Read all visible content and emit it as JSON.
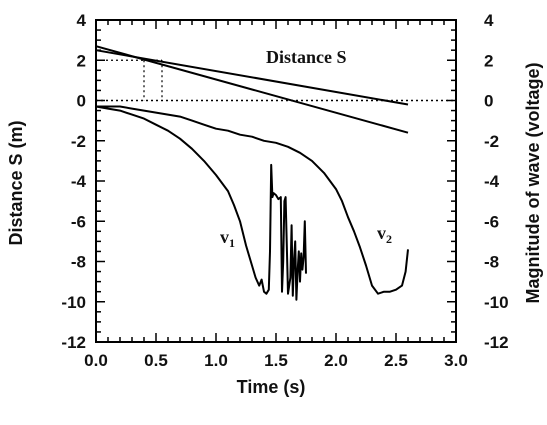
{
  "chart_data": {
    "type": "line",
    "xlabel": "Time (s)",
    "ylabel_left": "Distance S (m)",
    "ylabel_right": "Magnitude of wave (voltage)",
    "xlim": [
      0,
      3
    ],
    "ylim_left": [
      -12,
      4
    ],
    "ylim_right": [
      -12,
      4
    ],
    "x_ticks": [
      "0.0",
      "0.5",
      "1.0",
      "1.5",
      "2.0",
      "2.5",
      "3.0"
    ],
    "y_ticks": [
      "4",
      "2",
      "0",
      "-2",
      "-4",
      "-6",
      "-8",
      "-10",
      "-12"
    ],
    "grid": false,
    "annotations": {
      "distance": "Distance S",
      "v1_main": "v",
      "v1_sub": "1",
      "v2_main": "v",
      "v2_sub": "2"
    },
    "series": [
      {
        "name": "Distance S",
        "axis": "left",
        "x": [
          0.0,
          2.6
        ],
        "y": [
          2.5,
          -0.2
        ]
      },
      {
        "name": "Distance S",
        "axis": "left",
        "x": [
          0.0,
          2.6
        ],
        "y": [
          2.7,
          -1.6
        ]
      },
      {
        "name": "v1",
        "axis": "right",
        "x": [
          0.0,
          0.1,
          0.2,
          0.3,
          0.4,
          0.5,
          0.6,
          0.7,
          0.8,
          0.9,
          1.0,
          1.1,
          1.15,
          1.2,
          1.25,
          1.3,
          1.33,
          1.36,
          1.38,
          1.4,
          1.42,
          1.44,
          1.45,
          1.46,
          1.47,
          1.48,
          1.5,
          1.52,
          1.54,
          1.55,
          1.56,
          1.57,
          1.58,
          1.6,
          1.62,
          1.63,
          1.64,
          1.65,
          1.66,
          1.67,
          1.68,
          1.69,
          1.7,
          1.71,
          1.72,
          1.73,
          1.74,
          1.75
        ],
        "y": [
          -0.3,
          -0.4,
          -0.5,
          -0.7,
          -0.9,
          -1.2,
          -1.5,
          -1.9,
          -2.4,
          -3.0,
          -3.7,
          -4.5,
          -5.2,
          -6.0,
          -7.2,
          -8.2,
          -8.8,
          -9.2,
          -8.9,
          -9.5,
          -9.6,
          -9.4,
          -7.5,
          -3.2,
          -4.8,
          -4.6,
          -4.7,
          -4.9,
          -4.8,
          -9.5,
          -8.0,
          -5.0,
          -4.8,
          -9.6,
          -8.8,
          -6.2,
          -9.7,
          -8.0,
          -7.0,
          -9.9,
          -8.5,
          -7.5,
          -9.0,
          -7.6,
          -8.4,
          -7.8,
          -6.0,
          -8.6
        ]
      },
      {
        "name": "v2",
        "axis": "right",
        "x": [
          0.0,
          0.1,
          0.2,
          0.3,
          0.4,
          0.5,
          0.6,
          0.7,
          0.8,
          0.9,
          1.0,
          1.1,
          1.2,
          1.3,
          1.4,
          1.5,
          1.6,
          1.7,
          1.8,
          1.9,
          2.0,
          2.05,
          2.1,
          2.15,
          2.2,
          2.25,
          2.3,
          2.35,
          2.4,
          2.45,
          2.5,
          2.55,
          2.58,
          2.6
        ],
        "y": [
          -0.3,
          -0.3,
          -0.3,
          -0.4,
          -0.5,
          -0.6,
          -0.7,
          -0.8,
          -1.0,
          -1.2,
          -1.4,
          -1.5,
          -1.7,
          -1.8,
          -2.0,
          -2.1,
          -2.3,
          -2.6,
          -3.0,
          -3.6,
          -4.4,
          -5.0,
          -5.8,
          -6.5,
          -7.3,
          -8.2,
          -9.2,
          -9.6,
          -9.5,
          -9.5,
          -9.4,
          -9.2,
          -8.5,
          -7.4
        ]
      }
    ],
    "reference_lines": {
      "zero_line_y": 0,
      "marker_top_y": 2,
      "marker_x": [
        0.4,
        0.55
      ]
    }
  }
}
